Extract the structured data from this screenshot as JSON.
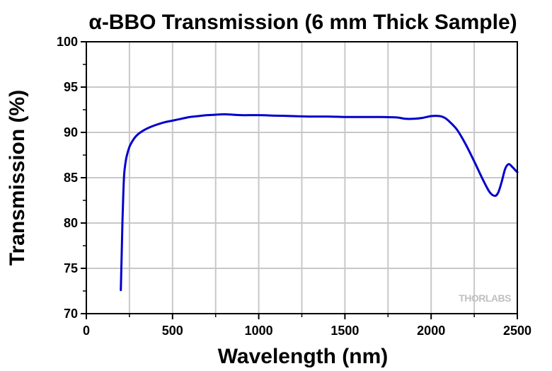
{
  "chart_data": {
    "type": "line",
    "title_prefix": "α",
    "title": "-BBO Transmission (6 mm Thick Sample)",
    "xlabel": "Wavelength (nm)",
    "ylabel": "Transmission (%)",
    "xlim": [
      0,
      2500
    ],
    "ylim": [
      70,
      100
    ],
    "xticks": [
      0,
      500,
      1000,
      1500,
      2000,
      2500
    ],
    "yticks": [
      70,
      75,
      80,
      85,
      90,
      95,
      100
    ],
    "grid": true,
    "legend": "none",
    "colors": {
      "series": "#0000cc",
      "grid": "#c8c8c8",
      "axis": "#000000"
    },
    "series": [
      {
        "x": [
          200,
          205,
          210,
          215,
          220,
          230,
          240,
          250,
          260,
          280,
          300,
          330,
          360,
          400,
          450,
          500,
          550,
          600,
          650,
          700,
          750,
          800,
          850,
          900,
          1000,
          1100,
          1200,
          1300,
          1400,
          1500,
          1600,
          1700,
          1800,
          1850,
          1900,
          1950,
          2000,
          2050,
          2080,
          2100,
          2150,
          2200,
          2250,
          2300,
          2340,
          2370,
          2390,
          2410,
          2430,
          2450,
          2470,
          2490,
          2500
        ],
        "y": [
          72.6,
          76.5,
          80.5,
          83.5,
          85.5,
          87.0,
          87.8,
          88.4,
          88.8,
          89.4,
          89.8,
          90.2,
          90.5,
          90.8,
          91.1,
          91.3,
          91.5,
          91.7,
          91.8,
          91.9,
          91.95,
          92.0,
          91.95,
          91.9,
          91.9,
          91.85,
          91.8,
          91.75,
          91.75,
          91.7,
          91.7,
          91.7,
          91.65,
          91.5,
          91.5,
          91.6,
          91.8,
          91.8,
          91.6,
          91.3,
          90.3,
          88.7,
          86.8,
          84.8,
          83.4,
          83.0,
          83.4,
          84.6,
          86.0,
          86.5,
          86.2,
          85.8,
          85.6
        ]
      }
    ],
    "watermark": "THORLABS"
  }
}
